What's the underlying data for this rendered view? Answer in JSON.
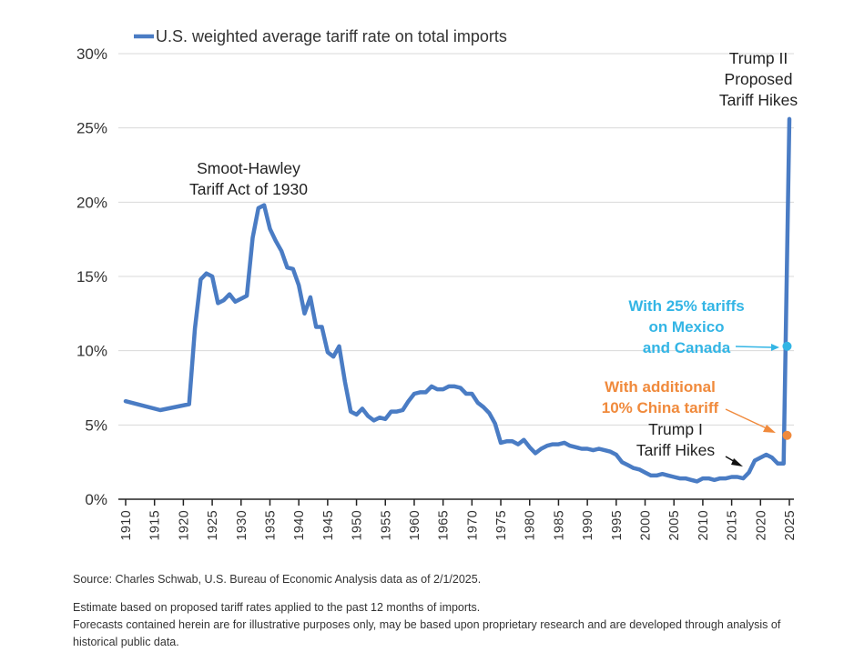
{
  "chart_data": {
    "type": "line",
    "title": "",
    "xlabel": "",
    "ylabel": "",
    "xlim": [
      1910,
      2025
    ],
    "ylim": [
      0,
      30
    ],
    "x_ticks": [
      "1910",
      "1915",
      "1920",
      "1925",
      "1930",
      "1935",
      "1940",
      "1945",
      "1950",
      "1955",
      "1960",
      "1965",
      "1970",
      "1975",
      "1980",
      "1985",
      "1990",
      "1995",
      "2000",
      "2005",
      "2010",
      "2015",
      "2020",
      "2025"
    ],
    "y_ticks": [
      "0%",
      "5%",
      "10%",
      "15%",
      "20%",
      "25%",
      "30%"
    ],
    "grid": "horizontal",
    "legend": "top-left",
    "series": [
      {
        "name": "U.S. weighted average tariff rate on total imports",
        "color": "#4a7cc4",
        "x": [
          1910,
          1916,
          1921,
          1922,
          1923,
          1924,
          1925,
          1926,
          1927,
          1928,
          1929,
          1930,
          1931,
          1932,
          1933,
          1934,
          1935,
          1936,
          1937,
          1938,
          1939,
          1940,
          1941,
          1942,
          1943,
          1944,
          1945,
          1946,
          1947,
          1948,
          1949,
          1950,
          1951,
          1952,
          1953,
          1954,
          1955,
          1956,
          1957,
          1958,
          1959,
          1960,
          1961,
          1962,
          1963,
          1964,
          1965,
          1966,
          1967,
          1968,
          1969,
          1970,
          1971,
          1972,
          1973,
          1974,
          1975,
          1976,
          1977,
          1978,
          1979,
          1980,
          1981,
          1982,
          1983,
          1984,
          1985,
          1986,
          1987,
          1988,
          1989,
          1990,
          1991,
          1992,
          1993,
          1994,
          1995,
          1996,
          1997,
          1998,
          1999,
          2000,
          2001,
          2002,
          2003,
          2004,
          2005,
          2006,
          2007,
          2008,
          2009,
          2010,
          2011,
          2012,
          2013,
          2014,
          2015,
          2016,
          2017,
          2018,
          2019,
          2020,
          2021,
          2022,
          2023,
          2024,
          2025
        ],
        "values": [
          6.6,
          6.0,
          6.4,
          11.5,
          14.8,
          15.2,
          15.0,
          13.2,
          13.4,
          13.8,
          13.3,
          13.5,
          13.7,
          17.6,
          19.6,
          19.8,
          18.2,
          17.4,
          16.7,
          15.6,
          15.5,
          14.4,
          12.5,
          13.6,
          11.6,
          11.6,
          9.9,
          9.6,
          10.3,
          7.9,
          5.9,
          5.7,
          6.1,
          5.6,
          5.3,
          5.5,
          5.4,
          5.9,
          5.9,
          6.0,
          6.6,
          7.1,
          7.2,
          7.2,
          7.6,
          7.4,
          7.4,
          7.6,
          7.6,
          7.5,
          7.1,
          7.1,
          6.5,
          6.2,
          5.8,
          5.1,
          3.8,
          3.9,
          3.9,
          3.7,
          4.0,
          3.5,
          3.1,
          3.4,
          3.6,
          3.7,
          3.7,
          3.8,
          3.6,
          3.5,
          3.4,
          3.4,
          3.3,
          3.4,
          3.3,
          3.2,
          3.0,
          2.5,
          2.3,
          2.1,
          2.0,
          1.8,
          1.6,
          1.6,
          1.7,
          1.6,
          1.5,
          1.4,
          1.4,
          1.3,
          1.2,
          1.4,
          1.4,
          1.3,
          1.4,
          1.4,
          1.5,
          1.5,
          1.4,
          1.8,
          2.6,
          2.8,
          3.0,
          2.8,
          2.4,
          2.4,
          25.6
        ]
      }
    ],
    "points": [
      {
        "label": "With 25% tariffs on Mexico and Canada",
        "x": 2024.6,
        "value": 10.3,
        "color": "#33b5e5"
      },
      {
        "label": "With additional 10% China tariff",
        "x": 2024.6,
        "value": 4.3,
        "color": "#f08a3c"
      }
    ],
    "legend_label": "U.S. weighted average tariff rate on total imports",
    "annotations": {
      "smoot_line1": "Smoot-Hawley",
      "smoot_line2": "Tariff Act of 1930",
      "trump2_line1": "Trump II",
      "trump2_line2": "Proposed",
      "trump2_line3": "Tariff Hikes",
      "mexcan_line1": "With 25% tariffs",
      "mexcan_line2": "on Mexico",
      "mexcan_line3": "and Canada",
      "china_line1": "With additional",
      "china_line2": "10% China tariff",
      "trump1_line1": "Trump I",
      "trump1_line2": "Tariff Hikes"
    }
  },
  "notes": {
    "source": "Source: Charles Schwab, U.S. Bureau of Economic Analysis data as of 2/1/2025.",
    "estimate": "Estimate based on proposed tariff rates applied to the past 12 months of imports.",
    "forecast": "Forecasts contained herein are for illustrative purposes only, may be based upon proprietary research and are developed through analysis of historical public data."
  }
}
